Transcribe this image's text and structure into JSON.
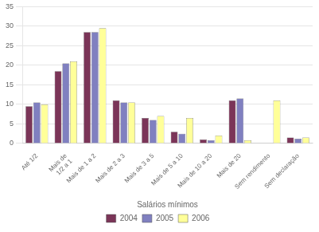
{
  "chart_data": {
    "type": "bar",
    "categories": [
      "Até 1/2",
      "Mais de\n1/2 a 1",
      "Mais de 1 a 2",
      "Mais de 2 a 3",
      "Mais de 3 a 5",
      "Mais de 5 a 10",
      "Mais de 10 a 20",
      "Mais de 20",
      "Sem rendimento",
      "Sem declaração"
    ],
    "series": [
      {
        "name": "2004",
        "color": "#7B3558",
        "values": [
          9.5,
          18.5,
          28.5,
          11.0,
          6.5,
          3.0,
          1.0,
          11.0,
          0.0,
          1.5
        ]
      },
      {
        "name": "2005",
        "color": "#8080C0",
        "values": [
          10.5,
          20.5,
          28.5,
          10.5,
          6.0,
          2.5,
          0.8,
          11.5,
          0.0,
          1.2
        ]
      },
      {
        "name": "2006",
        "color": "#FFFF99",
        "values": [
          10.0,
          21.0,
          29.5,
          10.5,
          7.0,
          6.5,
          2.0,
          0.8,
          11.0,
          1.5
        ]
      }
    ],
    "xlabel": "Salários mínimos",
    "ylim": [
      0,
      35
    ],
    "yticks": [
      0,
      5,
      10,
      15,
      20,
      25,
      30,
      35
    ],
    "grid": true,
    "legend": "bottom"
  }
}
